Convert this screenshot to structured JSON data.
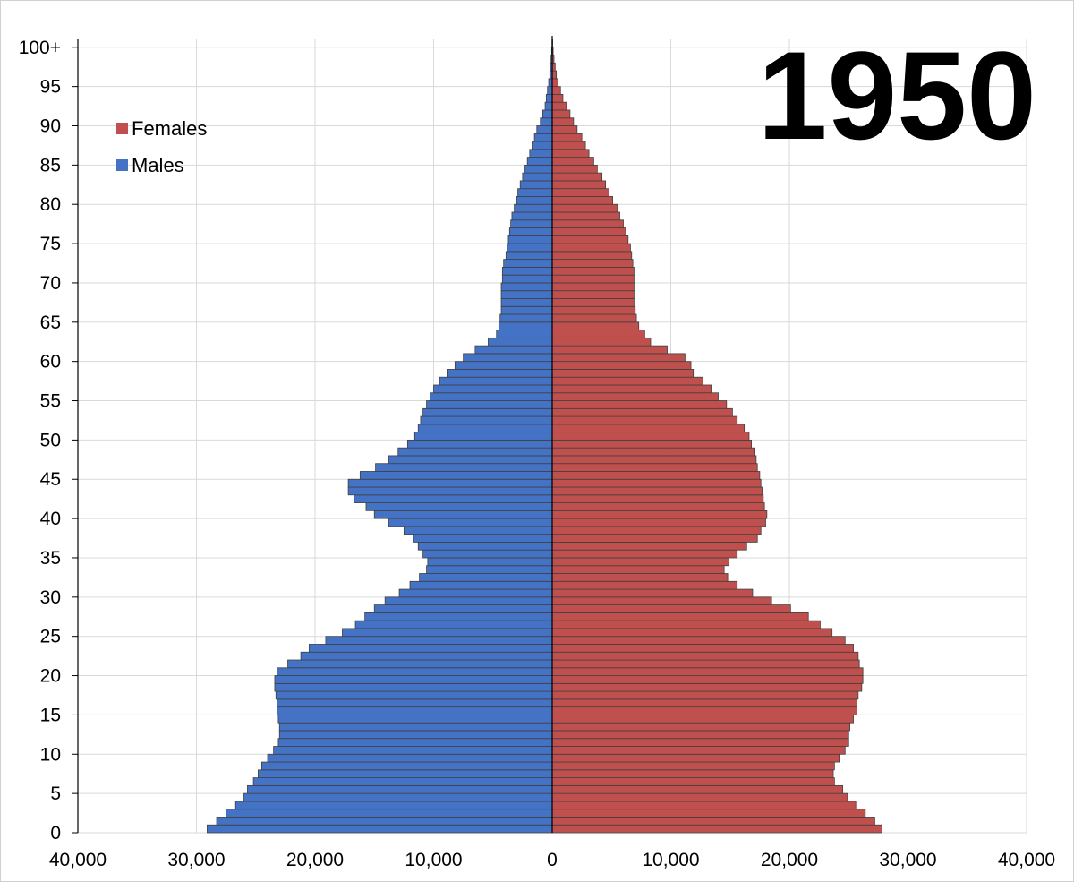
{
  "chart_data": {
    "type": "bar",
    "orientation": "horizontal",
    "title": "1950",
    "year": "1950",
    "xlim": [
      -40000,
      40000
    ],
    "x_tick_values": [
      -40000,
      -30000,
      -20000,
      -10000,
      0,
      10000,
      20000,
      30000,
      40000
    ],
    "x_tick_labels": [
      "40,000",
      "30,000",
      "20,000",
      "10,000",
      "0",
      "10,000",
      "20,000",
      "30,000",
      "40,000"
    ],
    "y_tick_labels": [
      "0",
      "5",
      "10",
      "15",
      "20",
      "25",
      "30",
      "35",
      "40",
      "45",
      "50",
      "55",
      "60",
      "65",
      "70",
      "75",
      "80",
      "85",
      "90",
      "95",
      "100+"
    ],
    "grid": true,
    "legend_placement": "top-left",
    "legend": [
      {
        "name": "Females",
        "color": "#c0504d"
      },
      {
        "name": "Males",
        "color": "#4472c4"
      }
    ],
    "ages": [
      "0",
      "1",
      "2",
      "3",
      "4",
      "5",
      "6",
      "7",
      "8",
      "9",
      "10",
      "11",
      "12",
      "13",
      "14",
      "15",
      "16",
      "17",
      "18",
      "19",
      "20",
      "21",
      "22",
      "23",
      "24",
      "25",
      "26",
      "27",
      "28",
      "29",
      "30",
      "31",
      "32",
      "33",
      "34",
      "35",
      "36",
      "37",
      "38",
      "39",
      "40",
      "41",
      "42",
      "43",
      "44",
      "45",
      "46",
      "47",
      "48",
      "49",
      "50",
      "51",
      "52",
      "53",
      "54",
      "55",
      "56",
      "57",
      "58",
      "59",
      "60",
      "61",
      "62",
      "63",
      "64",
      "65",
      "66",
      "67",
      "68",
      "69",
      "70",
      "71",
      "72",
      "73",
      "74",
      "75",
      "76",
      "77",
      "78",
      "79",
      "80",
      "81",
      "82",
      "83",
      "84",
      "85",
      "86",
      "87",
      "88",
      "89",
      "90",
      "91",
      "92",
      "93",
      "94",
      "95",
      "96",
      "97",
      "98",
      "99",
      "100+"
    ],
    "series": [
      {
        "name": "Males",
        "color": "#4472c4",
        "values": [
          29100,
          28300,
          27500,
          26700,
          26000,
          25700,
          25200,
          24800,
          24500,
          24000,
          23500,
          23100,
          23000,
          23000,
          23100,
          23200,
          23200,
          23300,
          23400,
          23400,
          23200,
          22300,
          21200,
          20500,
          19100,
          17700,
          16600,
          15800,
          15000,
          14100,
          12900,
          12000,
          11200,
          10600,
          10500,
          10900,
          11300,
          11700,
          12500,
          13800,
          15000,
          15700,
          16700,
          17200,
          17200,
          16200,
          14900,
          13800,
          13000,
          12200,
          11600,
          11300,
          11100,
          10900,
          10600,
          10300,
          10000,
          9500,
          8800,
          8200,
          7500,
          6500,
          5400,
          4700,
          4500,
          4400,
          4300,
          4300,
          4300,
          4300,
          4200,
          4200,
          4100,
          3900,
          3800,
          3700,
          3600,
          3500,
          3400,
          3200,
          3000,
          2900,
          2700,
          2500,
          2300,
          2100,
          1900,
          1700,
          1500,
          1300,
          1000,
          800,
          600,
          500,
          400,
          300,
          200,
          150,
          100,
          50,
          20
        ],
        "labels": []
      },
      {
        "name": "Females",
        "color": "#c0504d",
        "values": [
          27800,
          27200,
          26400,
          25600,
          24900,
          24500,
          23800,
          23700,
          23800,
          24200,
          24700,
          25000,
          25000,
          25100,
          25400,
          25700,
          25700,
          25800,
          26100,
          26200,
          26200,
          25900,
          25800,
          25400,
          24700,
          23600,
          22600,
          21600,
          20100,
          18500,
          16900,
          15600,
          14800,
          14500,
          14900,
          15600,
          16400,
          17300,
          17600,
          18000,
          18100,
          17900,
          17800,
          17700,
          17600,
          17500,
          17300,
          17200,
          17100,
          16800,
          16600,
          16200,
          15600,
          15200,
          14700,
          14000,
          13400,
          12700,
          11900,
          11700,
          11200,
          9700,
          8300,
          7800,
          7300,
          7100,
          7000,
          6900,
          6900,
          6900,
          6900,
          6900,
          6800,
          6700,
          6600,
          6400,
          6200,
          6000,
          5700,
          5500,
          5100,
          4800,
          4500,
          4200,
          3800,
          3500,
          3100,
          2800,
          2500,
          2100,
          1800,
          1500,
          1200,
          900,
          700,
          500,
          350,
          250,
          150,
          80,
          40
        ],
        "labels": []
      }
    ]
  }
}
